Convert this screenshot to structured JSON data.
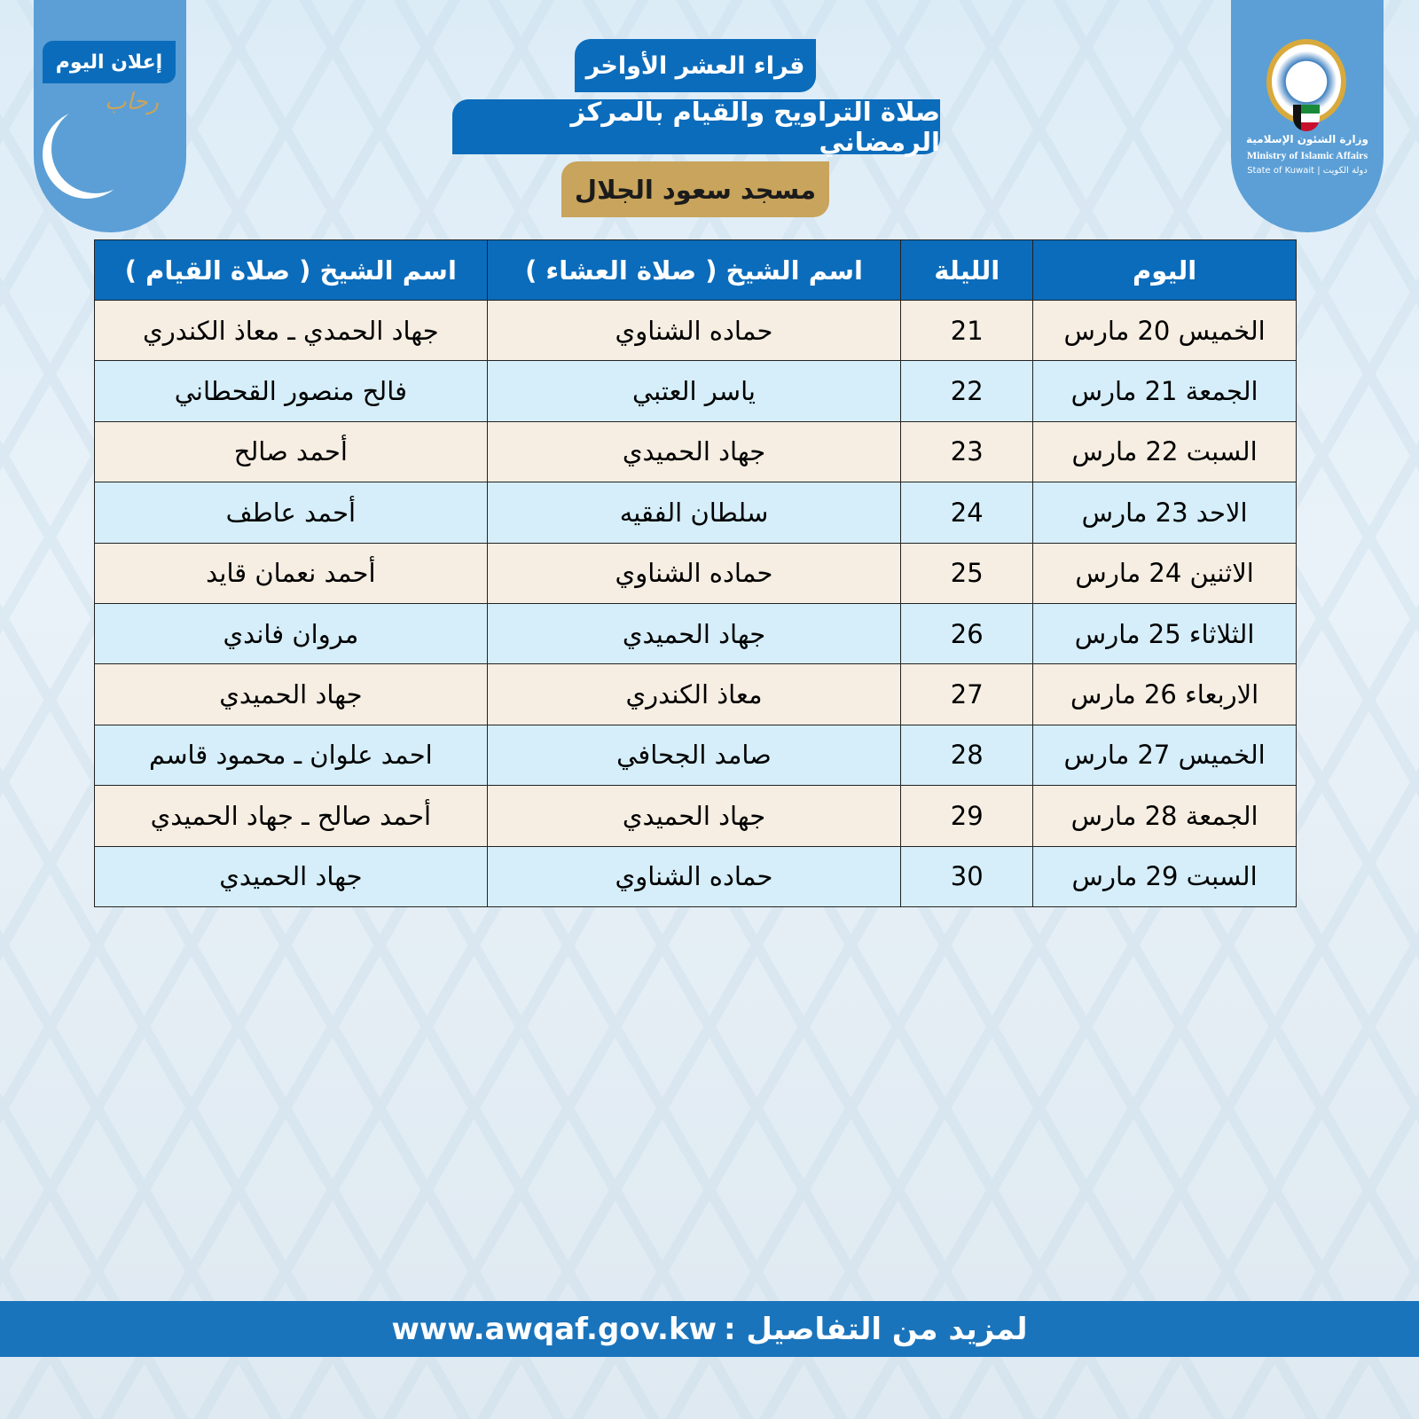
{
  "left_badge": {
    "announce": "إعلان اليوم",
    "logo_text": "في رحاب رمضان"
  },
  "ministry": {
    "ar": "وزارة الشئون الإسلامية",
    "en": "Ministry of Islamic Affairs",
    "state": "State of Kuwait | دولة الكويت"
  },
  "titles": [
    "قراء العشر الأواخر",
    "صلاة التراويح والقيام بالمركز الرمضاني",
    "مسجد سعود الجلال"
  ],
  "colors": {
    "primary": "#0b6cbb",
    "gold": "#c9a45c",
    "row_beige": "#f6eee2",
    "row_blue": "#d5eef9"
  },
  "table": {
    "headers": [
      "اليوم",
      "الليلة",
      "اسم الشيخ ( صلاة العشاء )",
      "اسم الشيخ ( صلاة القيام )"
    ],
    "rows": [
      [
        "الخميس 20 مارس",
        "21",
        "حماده الشناوي",
        "جهاد الحمدي ـ معاذ الكندري"
      ],
      [
        "الجمعة 21 مارس",
        "22",
        "ياسر العتبي",
        "فالح منصور القحطاني"
      ],
      [
        "السبت 22 مارس",
        "23",
        "جهاد الحميدي",
        "أحمد صالح"
      ],
      [
        "الاحد 23 مارس",
        "24",
        "سلطان الفقيه",
        "أحمد عاطف"
      ],
      [
        "الاثنين 24 مارس",
        "25",
        "حماده الشناوي",
        "أحمد نعمان قايد"
      ],
      [
        "الثلاثاء 25 مارس",
        "26",
        "جهاد الحميدي",
        "مروان فاندي"
      ],
      [
        "الاربعاء 26 مارس",
        "27",
        "معاذ الكندري",
        "جهاد الحميدي"
      ],
      [
        "الخميس 27 مارس",
        "28",
        "صامد الجحافي",
        "احمد علوان ـ محمود قاسم"
      ],
      [
        "الجمعة 28 مارس",
        "29",
        "جهاد الحميدي",
        "أحمد صالح ـ جهاد الحميدي"
      ],
      [
        "السبت 29 مارس",
        "30",
        "حماده الشناوي",
        "جهاد الحميدي"
      ]
    ]
  },
  "footer": {
    "label": "لمزيد من التفاصيل :",
    "url": "www.awqaf.gov.kw"
  }
}
